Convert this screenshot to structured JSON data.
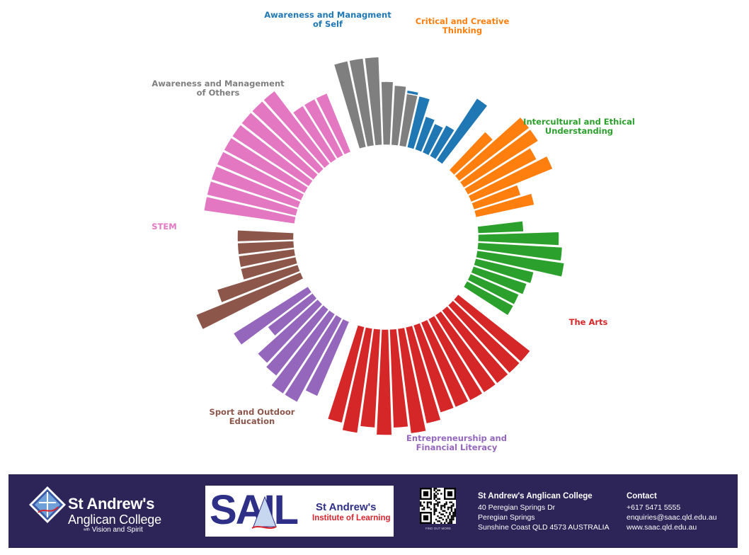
{
  "chart_data": {
    "type": "bar",
    "layout": "radial",
    "title": "",
    "inner_radius": 130,
    "groups": [
      {
        "name": "Awareness and Managment\nof Self",
        "color": "#1f77b4",
        "values": [
          80,
          75,
          80,
          80,
          75,
          50,
          45,
          50,
          105
        ]
      },
      {
        "name": "Critical and Creative\nThinking",
        "color": "#ff7f0e",
        "values": [
          75,
          125,
          125,
          110,
          125,
          70,
          85
        ]
      },
      {
        "name": "Intercultural and Ethical\nUnderstanding",
        "color": "#2ca02c",
        "values": [
          65,
          115,
          120,
          125,
          85,
          80,
          75,
          75
        ]
      },
      {
        "name": "The Arts",
        "color": "#d62728",
        "values": [
          130,
          130,
          130,
          130,
          130,
          130,
          130,
          140,
          150,
          140,
          150,
          140,
          150,
          140
        ]
      },
      {
        "name": "Entrepreneurship and\nFinancial Literacy",
        "color": "#9467bd",
        "values": [
          115,
          135,
          135,
          120,
          115,
          80,
          125
        ]
      },
      {
        "name": "Sport and Outdoor\nEducation",
        "color": "#8c564b",
        "values": [
          160,
          120,
          80,
          80,
          80,
          80
        ]
      },
      {
        "name": "STEM",
        "color": "#e377c2",
        "values": [
          130,
          130,
          130,
          130,
          130,
          130,
          130,
          130,
          130,
          90,
          90,
          90
        ]
      },
      {
        "name": "Awareness and Management\nof Others",
        "color": "#7f7f7f",
        "values": [
          125,
          125,
          125,
          90,
          85,
          75
        ]
      }
    ]
  },
  "footer": {
    "college_name_line1": "St Andrew's",
    "college_name_line2": "Anglican College",
    "college_tagline_with": "with",
    "college_tagline": "Vision and Spirit",
    "sail_word": "SAIL",
    "sail_title1": "St Andrew's",
    "sail_title2": "Institute of Learning",
    "qr_caption": "FIND OUT MORE",
    "address_name": "St Andrew's Anglican College",
    "address_line1": "40 Peregian Springs Dr",
    "address_line2": "Peregian Springs",
    "address_line3": "Sunshine Coast QLD 4573 AUSTRALIA",
    "contact_title": "Contact",
    "contact_phone": "+617 5471 5555",
    "contact_email": "enquiries@saac.qld.edu.au",
    "contact_web": "www.saac.qld.edu.au"
  }
}
